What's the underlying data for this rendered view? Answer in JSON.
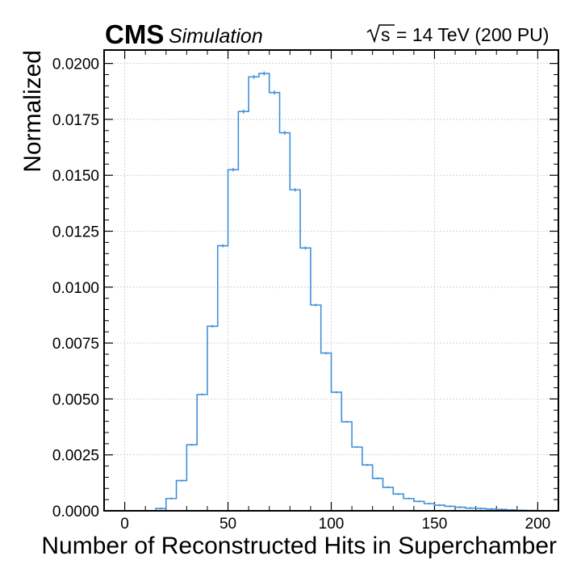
{
  "header": {
    "experiment": "CMS",
    "tag": "Simulation",
    "energy_symbol": "s",
    "energy_text": "= 14 TeV (200 PU)"
  },
  "chart_data": {
    "type": "histogram-step",
    "xlabel": "Number of Reconstructed Hits in Superchamber",
    "ylabel": "Normalized",
    "xlim": [
      -10,
      210
    ],
    "ylim": [
      0,
      0.0206
    ],
    "grid": true,
    "line_color": "#3f90da",
    "x_ticks": [
      0,
      50,
      100,
      150,
      200
    ],
    "x_tick_labels": [
      "0",
      "50",
      "100",
      "150",
      "200"
    ],
    "y_ticks": [
      0,
      0.0025,
      0.005,
      0.0075,
      0.01,
      0.0125,
      0.015,
      0.0175,
      0.02
    ],
    "y_tick_labels": [
      "0.0000",
      "0.0025",
      "0.0050",
      "0.0075",
      "0.0100",
      "0.0125",
      "0.0150",
      "0.0175",
      "0.0200"
    ],
    "bin_edges": [
      15,
      20,
      25,
      30,
      35,
      40,
      45,
      50,
      55,
      60,
      65,
      70,
      75,
      80,
      85,
      90,
      95,
      100,
      105,
      110,
      115,
      120,
      125,
      130,
      135,
      140,
      145,
      150,
      155,
      160,
      165,
      170,
      175,
      180,
      185,
      190,
      195,
      200
    ],
    "values": [
      0.0001,
      0.00055,
      0.00135,
      0.00295,
      0.0052,
      0.00825,
      0.01185,
      0.01525,
      0.01785,
      0.0194,
      0.01955,
      0.0187,
      0.0169,
      0.01435,
      0.01175,
      0.0092,
      0.00705,
      0.0053,
      0.00398,
      0.00285,
      0.00205,
      0.00145,
      0.00105,
      0.00075,
      0.00055,
      0.00042,
      0.00032,
      0.00025,
      0.0002,
      0.00016,
      0.00012,
      0.0001,
      8e-05,
      6e-05,
      4e-05,
      2e-05,
      1e-05
    ]
  }
}
